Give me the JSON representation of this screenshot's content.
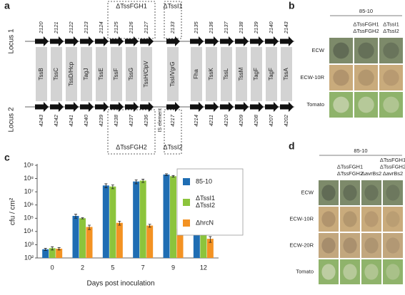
{
  "panel_labels": [
    "a",
    "b",
    "c",
    "d"
  ],
  "panel_a": {
    "loci": [
      "Locus 1",
      "Locus 2"
    ],
    "locus1_ids": [
      "2120",
      "2121",
      "2122",
      "2123",
      "2124",
      "2125",
      "2126",
      "2127",
      "2133",
      "2135",
      "2136",
      "2137",
      "2138",
      "2139",
      "2140",
      "2143"
    ],
    "genes": [
      "TssB",
      "TssC",
      "TssD/Hcp",
      "TagJ",
      "TssE",
      "TssF",
      "TssG",
      "TssH/ClpV",
      "TssI/VgrG",
      "Fha",
      "TssK",
      "TssL",
      "TssM",
      "TagF",
      "TagF",
      "TssA"
    ],
    "locus2_ids": [
      "4243",
      "4242",
      "4241",
      "4240",
      "4239",
      "4238",
      "4237",
      "4236",
      "4217",
      "4214",
      "4211",
      "4210",
      "4209",
      "4208",
      "4207",
      "4202"
    ],
    "is_element": "IS element",
    "deletions": [
      "ΔTssFGH1",
      "ΔTssI1",
      "ΔTssFGH2",
      "ΔTssI2"
    ]
  },
  "panel_b": {
    "strain": "85-10",
    "columns": [
      [
        "ΔTssFGH1",
        "ΔTssFGH2"
      ],
      [
        "ΔTssI1",
        "ΔTssI2"
      ]
    ],
    "rows": [
      "ECW",
      "ECW-10R",
      "Tomato"
    ]
  },
  "chart_data": {
    "type": "bar",
    "categories": [
      "0",
      "2",
      "5",
      "7",
      "9",
      "12"
    ],
    "x_label": "Days post inoculation",
    "y_label": "cfu / cm²",
    "log_scale": true,
    "ylim": [
      100,
      1000000000
    ],
    "yticks": [
      {
        "value": 100,
        "label": "10²"
      },
      {
        "value": 1000,
        "label": "10³"
      },
      {
        "value": 10000,
        "label": "10⁴"
      },
      {
        "value": 100000,
        "label": "10⁵"
      },
      {
        "value": 1000000,
        "label": "10⁶"
      },
      {
        "value": 10000000,
        "label": "10⁷"
      },
      {
        "value": 100000000,
        "label": "10⁸"
      },
      {
        "value": 1000000000,
        "label": "10⁹"
      }
    ],
    "series": [
      {
        "name": "85-10",
        "color": "#1f6db3",
        "values": [
          450,
          150000,
          30000000,
          60000000,
          200000000,
          160000000
        ],
        "errors": [
          80,
          50000,
          10000000,
          20000000,
          30000000,
          40000000
        ]
      },
      {
        "name": "ΔTssI1 ΔTssI2",
        "color": "#8cc43c",
        "values": [
          550,
          100000,
          25000000,
          70000000,
          150000000,
          140000000
        ],
        "errors": [
          150,
          10000,
          8000000,
          20000000,
          20000000,
          30000000
        ]
      },
      {
        "name": "ΔhrcN",
        "color": "#f39223",
        "values": [
          500,
          22000,
          45000,
          28000,
          16000,
          2800
        ],
        "errors": [
          100,
          8000,
          15000,
          7000,
          3000,
          1300
        ]
      }
    ],
    "legend": "upper right"
  },
  "panel_d": {
    "strain": "85-10",
    "columns": [
      [
        "ΔTssFGH1",
        "ΔTssFGH2"
      ],
      [
        "ΔavrBs2"
      ],
      [
        "ΔTssFGH1",
        "ΔTssFGH2",
        "ΔavrBs2"
      ]
    ],
    "rows": [
      "ECW",
      "ECW-10R",
      "ECW-20R",
      "Tomato"
    ]
  }
}
